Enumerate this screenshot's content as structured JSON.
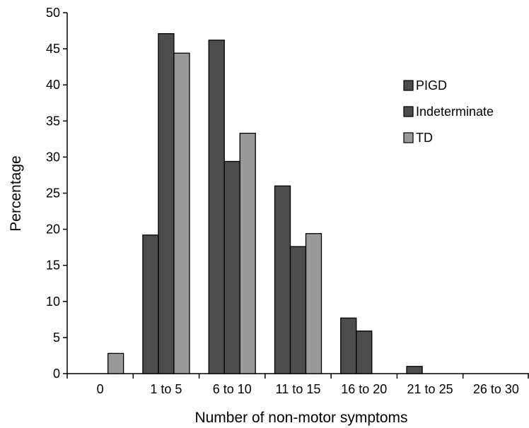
{
  "chart_data": {
    "type": "bar",
    "title": "",
    "xlabel": "Number of non-motor symptoms",
    "ylabel": "Percentage",
    "ylim": [
      0,
      50
    ],
    "yticks": [
      0,
      5,
      10,
      15,
      20,
      25,
      30,
      35,
      40,
      45,
      50
    ],
    "categories": [
      "0",
      "1 to 5",
      "6 to 10",
      "11 to 15",
      "16 to 20",
      "21 to 25",
      "26 to 30"
    ],
    "series": [
      {
        "name": "PIGD",
        "color": "#4d4d4d",
        "values": [
          0,
          19.2,
          46.2,
          26.0,
          7.7,
          1.0,
          0
        ]
      },
      {
        "name": "Indeterminate",
        "color": "#4d4d4d",
        "values": [
          0,
          47.1,
          29.4,
          17.6,
          5.9,
          0,
          0
        ]
      },
      {
        "name": "TD",
        "color": "#999999",
        "values": [
          2.8,
          44.4,
          33.3,
          19.4,
          0,
          0,
          0
        ]
      }
    ],
    "legend_position": "right",
    "grid": false
  }
}
